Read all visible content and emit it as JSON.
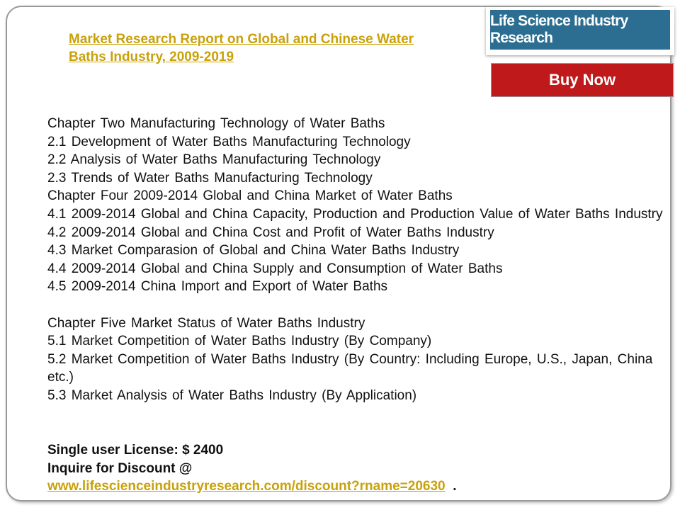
{
  "header": {
    "title_line1": "Market Research Report on Global and Chinese Water",
    "title_line2": "Baths Industry, 2009-2019",
    "logo": "Life Science Industry Research",
    "button": "Buy Now"
  },
  "sections": [
    {
      "lines": [
        "Chapter Two Manufacturing Technology of Water Baths",
        "2.1 Development of Water Baths Manufacturing Technology",
        "2.2 Analysis of Water Baths Manufacturing Technology",
        "2.3 Trends of Water Baths Manufacturing Technology",
        "Chapter Four 2009-2014 Global and China Market of Water Baths",
        "4.1 2009-2014 Global and China Capacity, Production and Production Value of Water Baths Industry",
        "4.2 2009-2014 Global and China Cost and Profit of Water Baths Industry",
        "4.3 Market Comparasion of Global and China Water Baths Industry",
        "4.4 2009-2014 Global and China Supply and Consumption of Water Baths",
        "4.5 2009-2014 China Import and Export of Water Baths"
      ]
    },
    {
      "lines": [
        "Chapter Five Market Status of Water Baths Industry",
        "5.1 Market Competition of Water Baths Industry (By Company)",
        "5.2 Market Competition of Water Baths Industry (By Country: Including Europe, U.S., Japan, China etc.)",
        "5.3 Market Analysis of Water Baths Industry (By Application)"
      ]
    }
  ],
  "footer": {
    "license": "Single user License: $ 2400",
    "inquire": "Inquire for Discount @",
    "url": "www.lifescienceindustryresearch.com/discount?rname=20630",
    "trail": "."
  }
}
